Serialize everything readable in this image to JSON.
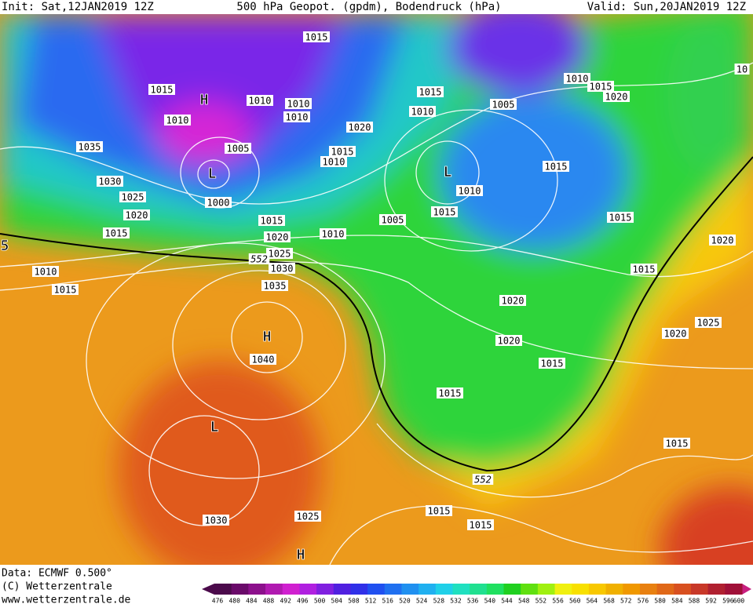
{
  "header": {
    "init": "Init: Sat,12JAN2019 12Z",
    "title": "500 hPa Geopot. (gpdm), Bodendruck (hPa)",
    "valid": "Valid: Sun,20JAN2019 12Z"
  },
  "map_labels": [
    "1015",
    "1015",
    "H",
    "1010",
    "1010",
    "1010",
    "1010",
    "1020",
    "1015",
    "1010",
    "1005",
    "1010",
    "1015",
    "1020",
    "1035",
    "1005",
    "1015",
    "1010",
    "1015",
    "L",
    "L",
    "1030",
    "1010",
    "1025",
    "1000",
    "1020",
    "1015",
    "1005",
    "1015",
    "1015",
    "1015",
    "1010",
    "1020",
    "1020",
    "5",
    "1025",
    "552",
    "1030",
    "1010",
    "1015",
    "1035",
    "1015",
    "1020",
    "1025",
    "H",
    "1020",
    "1020",
    "1040",
    "1015",
    "1015",
    "L",
    "1015",
    "552",
    "1015",
    "1025",
    "1030",
    "1015",
    "H",
    "10"
  ],
  "footer": {
    "data": "Data: ECMWF  0.500°",
    "copyright": "(C) Wetterzentrale",
    "url": "www.wetterzentrale.de"
  },
  "colorbar": {
    "ticks": [
      476,
      480,
      484,
      488,
      492,
      496,
      500,
      504,
      508,
      512,
      516,
      520,
      524,
      528,
      532,
      536,
      540,
      544,
      548,
      552,
      556,
      560,
      564,
      568,
      572,
      576,
      580,
      584,
      588,
      592,
      596,
      600
    ],
    "colors": [
      "#4b0a4b",
      "#6a0a6a",
      "#8c108c",
      "#b01ab0",
      "#d020d0",
      "#b020e0",
      "#8020e0",
      "#5020e0",
      "#3030e8",
      "#2050f0",
      "#2070f0",
      "#2090f0",
      "#20b0f0",
      "#20d0e8",
      "#20e0c0",
      "#20e090",
      "#20e060",
      "#20d020",
      "#60e010",
      "#a0f010",
      "#f0f010",
      "#f8e000",
      "#f8c800",
      "#f0b000",
      "#f09800",
      "#e88010",
      "#e06818",
      "#d85020",
      "#c83828",
      "#b02030",
      "#a01038",
      "#c82080"
    ]
  }
}
